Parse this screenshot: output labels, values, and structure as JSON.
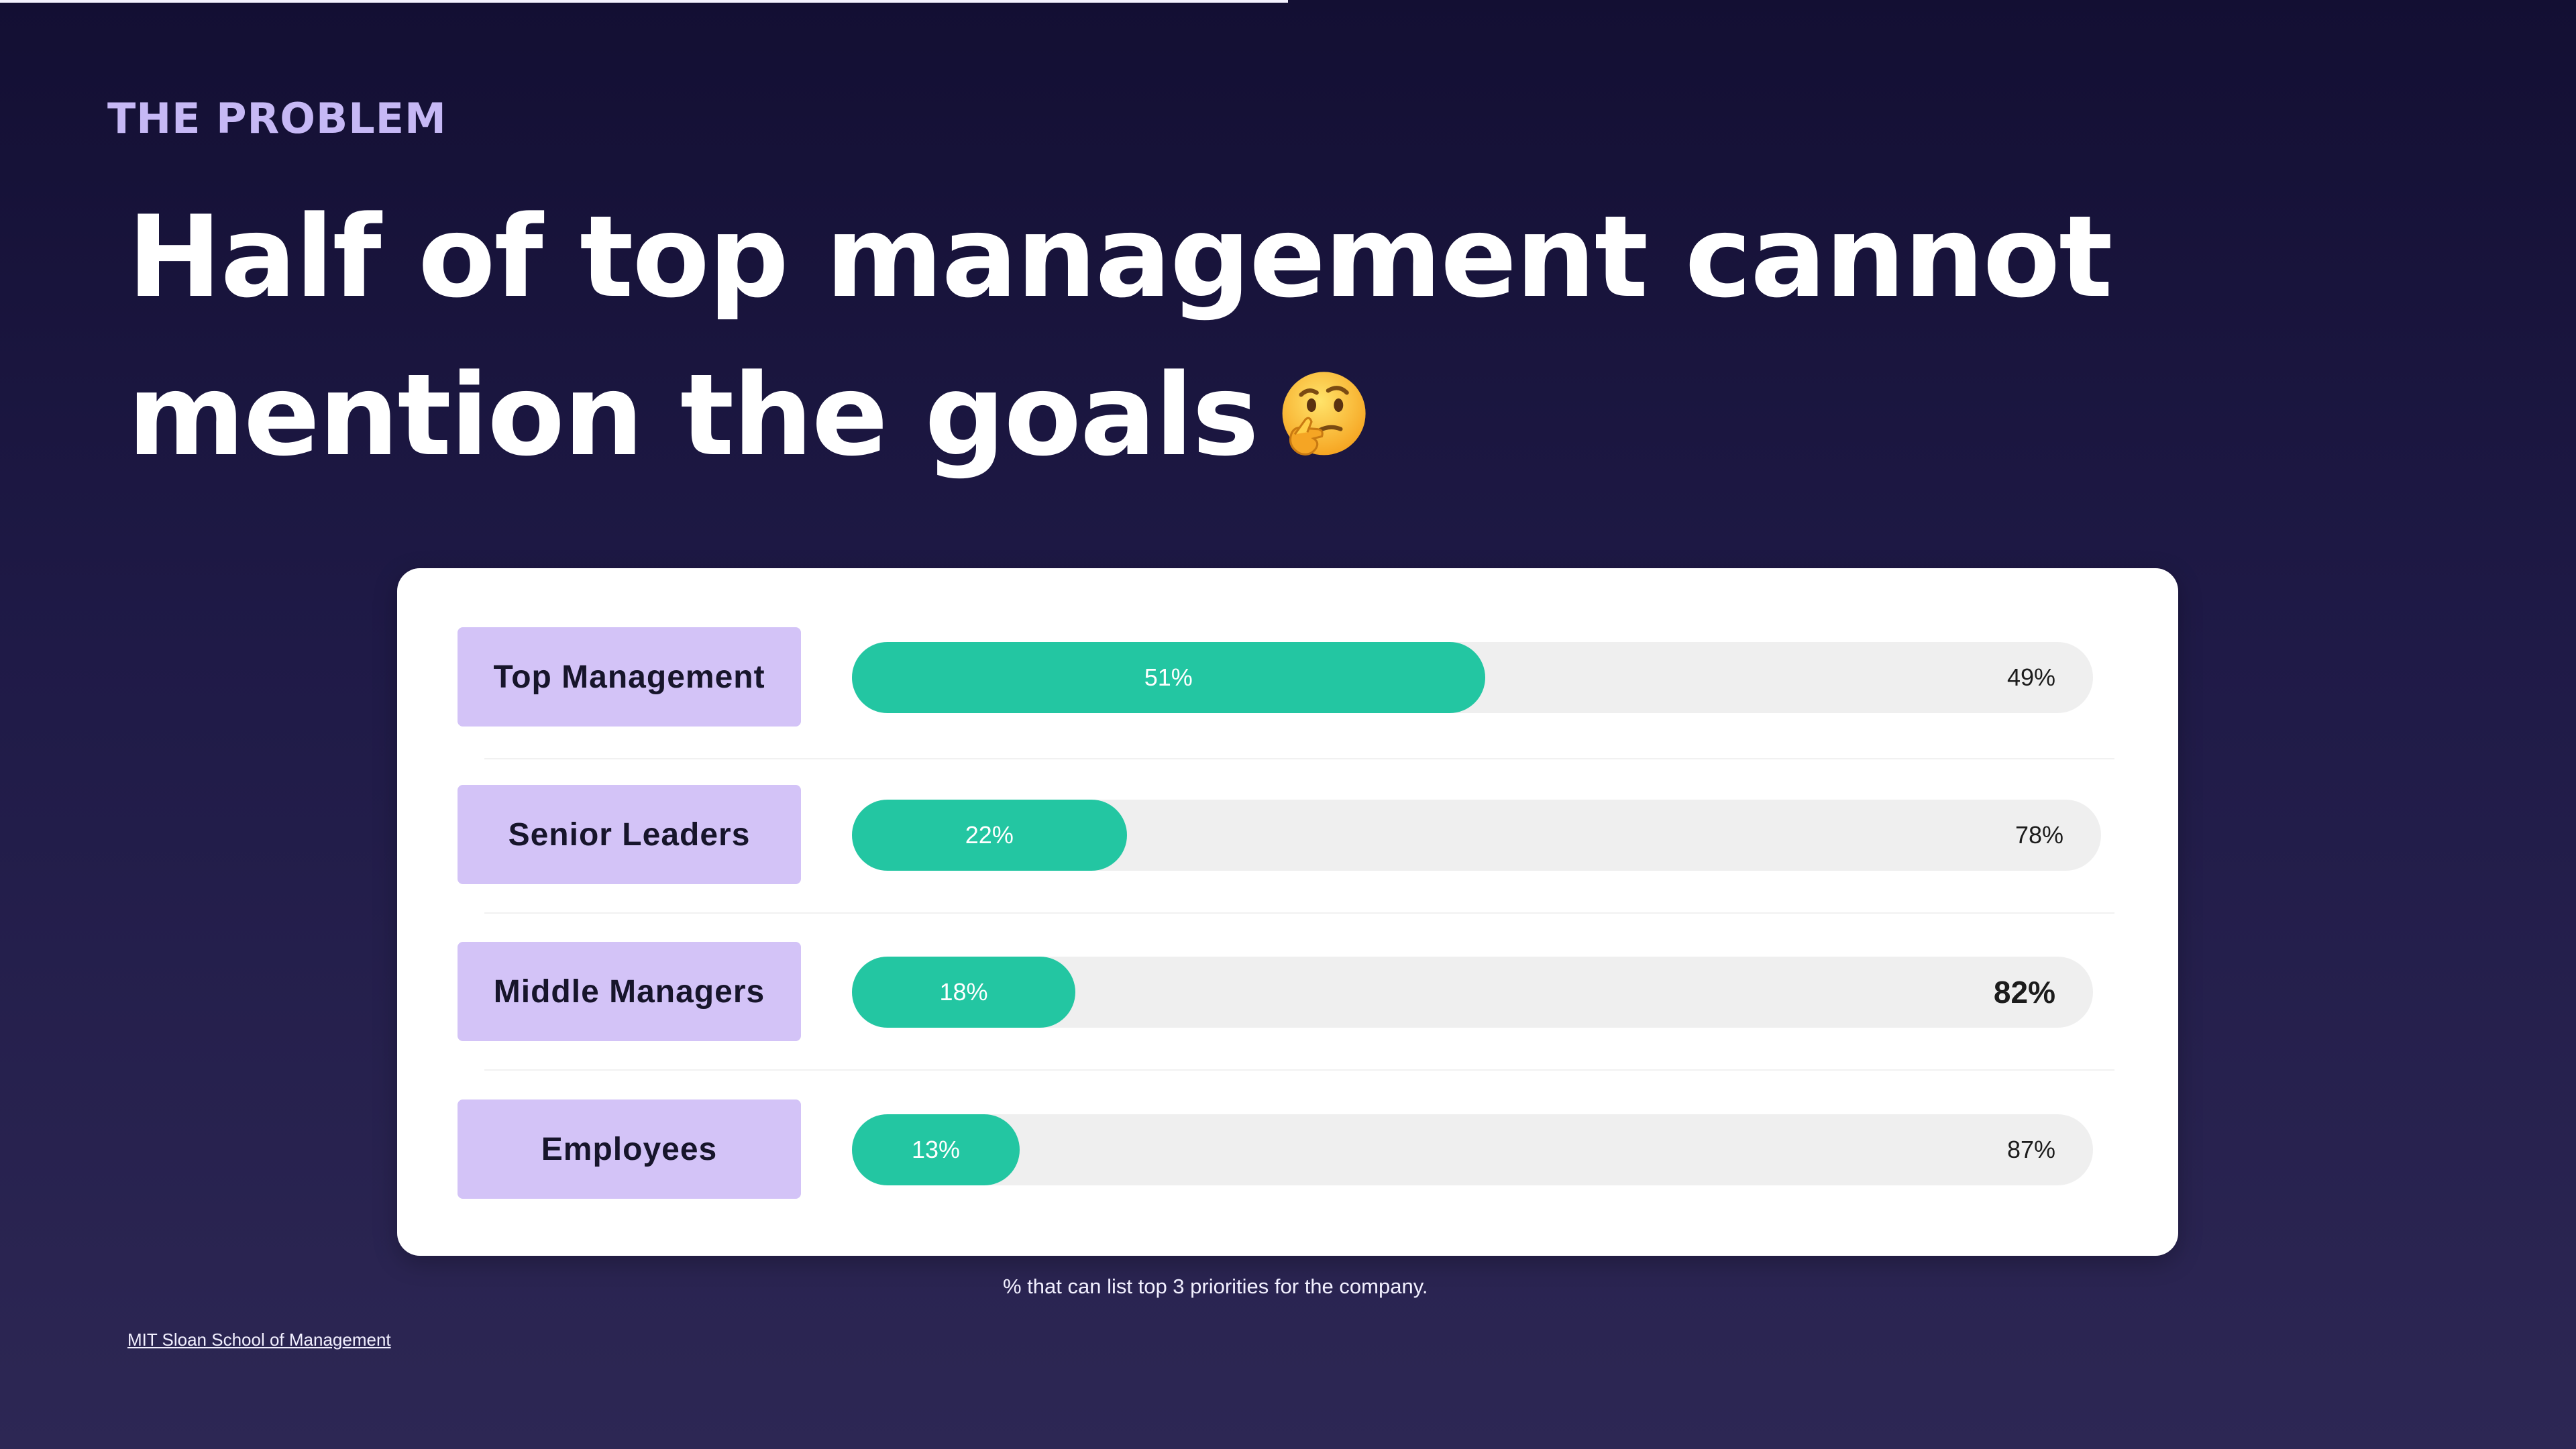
{
  "slide": {
    "kicker": "THE PROBLEM",
    "headline": "Half of top management cannot mention the goals",
    "headline_emoji": "thinking-face",
    "source": "MIT Sloan School of Management"
  },
  "chart_data": {
    "type": "bar",
    "orientation": "horizontal",
    "stacked": true,
    "title": "",
    "caption": "% that can list top 3 priorities for the company.",
    "categories": [
      "Top Management",
      "Senior Leaders",
      "Middle Managers",
      "Employees"
    ],
    "series": [
      {
        "values": [
          51,
          22,
          18,
          13
        ],
        "labels": [
          "51%",
          "22%",
          "18%",
          "13%"
        ],
        "color": "#23c6a2"
      },
      {
        "values": [
          49,
          78,
          82,
          87
        ],
        "labels": [
          "49%",
          "78%",
          "82%",
          "87%"
        ],
        "color": "#efefef"
      }
    ],
    "xlim": [
      0,
      100
    ],
    "emphasized_label": "82%",
    "label_color": "#d3c3f7"
  },
  "theme": {
    "background_top": "#130f33",
    "background_bottom": "#2d2754",
    "accent": "#c6b8f5"
  }
}
